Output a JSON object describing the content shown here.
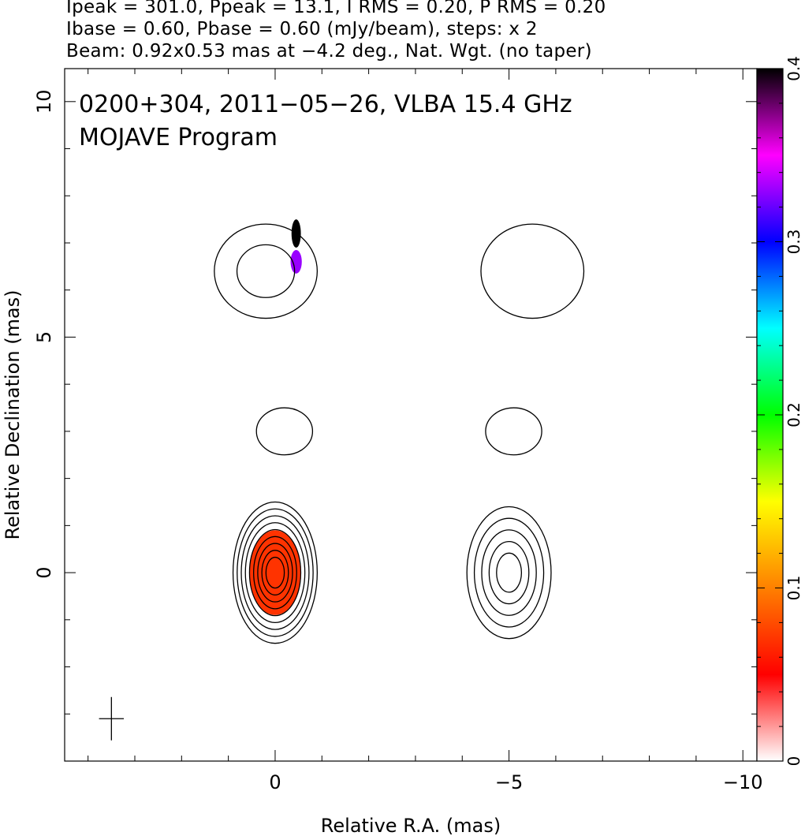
{
  "header": {
    "line1": "Ipeak = 301.0, Ppeak = 13.1, I RMS = 0.20, P RMS = 0.20",
    "line2": "Ibase = 0.60, Pbase = 0.60 (mJy/beam), steps: x 2",
    "line3": "Beam: 0.92x0.53 mas at −4.2 deg., Nat. Wgt. (no taper)"
  },
  "chart_data": {
    "type": "heatmap",
    "title": "0200+304, 2011−05−26, VLBA 15.4 GHz",
    "subtitle": "MOJAVE Program",
    "xlabel": "Relative R.A. (mas)",
    "ylabel": "Relative Declination (mas)",
    "xlim": [
      4.5,
      -10.3
    ],
    "ylim": [
      -4.0,
      10.7
    ],
    "x_ticks": [
      0,
      -5,
      -10
    ],
    "x_tick_labels": [
      "0",
      "−5",
      "−10"
    ],
    "y_ticks": [
      0,
      5,
      10
    ],
    "y_tick_labels": [
      "0",
      "5",
      "10"
    ],
    "colorbar": {
      "range": [
        0,
        0.4
      ],
      "ticks": [
        0,
        0.1,
        0.2,
        0.3,
        0.4
      ],
      "tick_labels": [
        "0",
        "0.1",
        "0.2",
        "0.3",
        "0.4"
      ],
      "stops": [
        "#ffffff",
        "#ff0000",
        "#ff8000",
        "#ffff00",
        "#00ff00",
        "#00ffff",
        "#0000ff",
        "#ff00ff",
        "#000000"
      ]
    },
    "panels": [
      {
        "name": "total-intensity",
        "x_offset": 0,
        "components": [
          {
            "x": 0.0,
            "y": 0.0,
            "sx": 0.9,
            "sy": 1.5,
            "levels": 9
          },
          {
            "x": 0.2,
            "y": 6.4,
            "sx": 1.1,
            "sy": 1.0,
            "levels": 2
          },
          {
            "x": -0.2,
            "y": 3.0,
            "sx": 0.6,
            "sy": 0.5,
            "levels": 1
          }
        ],
        "pol_pixels": [
          {
            "x": 0.0,
            "y": 0.0,
            "rx": 0.55,
            "ry": 0.9,
            "value": 0.07
          },
          {
            "x": -0.45,
            "y": 7.2,
            "rx": 0.1,
            "ry": 0.3,
            "value": 0.4
          },
          {
            "x": -0.45,
            "y": 6.6,
            "rx": 0.12,
            "ry": 0.25,
            "value": 0.33
          }
        ]
      },
      {
        "name": "polarized-intensity",
        "x_offset": -5,
        "components": [
          {
            "x": -5.0,
            "y": 0.0,
            "sx": 0.9,
            "sy": 1.4,
            "levels": 5
          },
          {
            "x": -5.5,
            "y": 6.4,
            "sx": 1.1,
            "sy": 1.0,
            "levels": 1
          },
          {
            "x": -5.1,
            "y": 3.0,
            "sx": 0.6,
            "sy": 0.5,
            "levels": 1
          }
        ]
      }
    ],
    "beam": {
      "x": 3.5,
      "y": -3.1,
      "major": 0.92,
      "minor": 0.53,
      "pa": -4.2
    }
  }
}
